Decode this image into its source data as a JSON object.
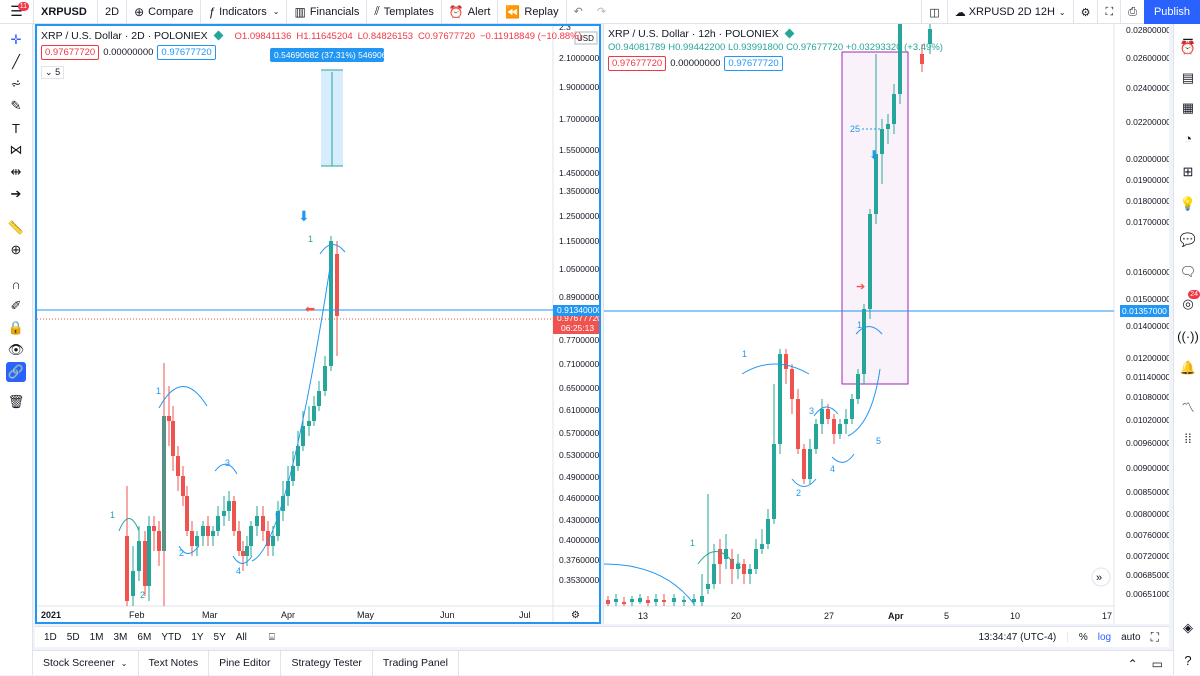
{
  "topbar": {
    "menu_badge": "11",
    "symbol": "XRPUSD",
    "interval": "2D",
    "compare": "Compare",
    "indicators": "Indicators",
    "financials": "Financials",
    "templates": "Templates",
    "alert": "Alert",
    "replay": "Replay",
    "layout_name": "XRPUSD 2D 12H",
    "publish": "Publish"
  },
  "left_chart": {
    "title": "XRP / U.S. Dollar · 2D · POLONIEX",
    "open": "O1.09841136",
    "high": "H1.11645204",
    "low": "L0.84826153",
    "close": "C0.97677720",
    "change": "−0.11918849 (−10.88%)",
    "val1": "0.97677720",
    "val2": "0.00000000",
    "val3": "0.97677720",
    "collapse": "5",
    "measure_label": "0.54690682 (37.31%) 54690682",
    "currency": "USD",
    "price_ticks": [
      "2.10000000",
      "1.90000000",
      "1.70000000",
      "1.55000000",
      "1.45000000",
      "1.35000000",
      "1.25000000",
      "1.15000000",
      "1.05000000",
      "0.89000000",
      "0.83000000",
      "0.77000000",
      "0.71000000",
      "0.65000000",
      "0.61000000",
      "0.57000000",
      "0.53000000",
      "0.49000000",
      "0.46000000",
      "0.43000000",
      "0.40000000",
      "0.37600000",
      "0.35300000"
    ],
    "top_tick": "2.3",
    "last_price": "0.97677720",
    "countdown": "06:25:13",
    "crosshair_price": "0.91340000",
    "time_ticks": [
      "2021",
      "Feb",
      "Mar",
      "Apr",
      "May",
      "Jun",
      "Jul"
    ],
    "wave_labels": [
      "1",
      "2",
      "3",
      "4",
      "5",
      "1",
      "1"
    ]
  },
  "right_chart": {
    "title": "XRP / U.S. Dollar · 12h · POLONIEX",
    "open": "O0.94081789",
    "high": "H0.99442200",
    "low": "L0.93991800",
    "close": "C0.97677720",
    "change": "+0.03293320 (+3.49%)",
    "val1": "0.97677720",
    "val2": "0.00000000",
    "val3": "0.97677720",
    "price_ticks": [
      "0.02800000",
      "0.02600000",
      "0.02400000",
      "0.02200000",
      "0.02000000",
      "0.01900000",
      "0.01800000",
      "0.01700000",
      "0.01600000",
      "0.01500000",
      "0.01400000",
      "0.01200000",
      "0.01140000",
      "0.01080000",
      "0.01020000",
      "0.00960000",
      "0.00900000",
      "0.00850000",
      "0.00800000",
      "0.00760000",
      "0.00720000",
      "0.00685000",
      "0.00651000"
    ],
    "crosshair_price": "0.01357000",
    "time_ticks": [
      "13",
      "20",
      "27",
      "Apr",
      "5",
      "10",
      "17"
    ],
    "wave_labels": [
      "1",
      "2",
      "3",
      "4",
      "5",
      "1",
      "3",
      "1"
    ],
    "marker_25": "25"
  },
  "bottom": {
    "ranges": [
      "1D",
      "5D",
      "1M",
      "3M",
      "6M",
      "YTD",
      "1Y",
      "5Y",
      "All"
    ],
    "time": "13:34:47 (UTC-4)",
    "percent": "%",
    "log": "log",
    "auto": "auto"
  },
  "footer": {
    "tabs": [
      "Stock Screener",
      "Text Notes",
      "Pine Editor",
      "Strategy Tester",
      "Trading Panel"
    ]
  },
  "notifications_badge": "24",
  "colors": {
    "up": "#26a69a",
    "down": "#ef5350",
    "accent": "#2962ff",
    "crosshair": "#2196f3"
  }
}
